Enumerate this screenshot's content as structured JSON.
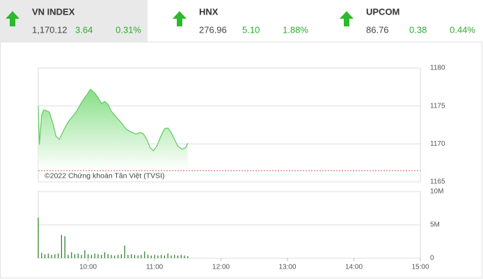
{
  "tabs": [
    {
      "name": "VN INDEX",
      "value": "1,170.12",
      "change": "3.64",
      "percent": "0.31%"
    },
    {
      "name": "HNX",
      "value": "276.96",
      "change": "5.10",
      "percent": "1.88%"
    },
    {
      "name": "UPCOM",
      "value": "86.76",
      "change": "0.38",
      "percent": "0.44%"
    }
  ],
  "chart_data": [
    {
      "type": "area",
      "annotation": "©2022 Chứng khoán Tân Việt (TVSI)",
      "color": "#5cc95c",
      "x": [
        555,
        556,
        558,
        560,
        565,
        568,
        571,
        574,
        577,
        580,
        583,
        587,
        590,
        593,
        596,
        599,
        602,
        606,
        609,
        612,
        615,
        618,
        621,
        625,
        628,
        631,
        634,
        637,
        640,
        643,
        647,
        650,
        653,
        656,
        659,
        662,
        666,
        669,
        672,
        675,
        678,
        681,
        685,
        688,
        690
      ],
      "values": [
        1175.0,
        1169.9,
        1173.8,
        1174.5,
        1174.2,
        1172.8,
        1171.0,
        1170.6,
        1171.5,
        1172.4,
        1173.1,
        1173.8,
        1174.4,
        1175.2,
        1175.9,
        1176.5,
        1177.2,
        1176.7,
        1176.1,
        1175.3,
        1175.6,
        1175.2,
        1174.3,
        1173.6,
        1173.1,
        1172.6,
        1172.0,
        1171.7,
        1171.5,
        1171.3,
        1171.5,
        1171.3,
        1170.6,
        1169.5,
        1169.1,
        1169.7,
        1171.1,
        1172.0,
        1172.1,
        1171.5,
        1170.6,
        1169.7,
        1169.3,
        1169.5,
        1170.1
      ],
      "xlim": [
        555,
        900
      ],
      "ylim": [
        1165,
        1180
      ],
      "yticks": [
        1165,
        1170,
        1175,
        1180
      ],
      "reference_line": 1166.48
    },
    {
      "type": "bar",
      "color": "#1f7a1f",
      "x": [
        555,
        558,
        561,
        564,
        567,
        570,
        573,
        576,
        579,
        582,
        585,
        588,
        591,
        594,
        597,
        600,
        603,
        606,
        609,
        612,
        615,
        618,
        621,
        624,
        627,
        630,
        633,
        636,
        639,
        642,
        645,
        648,
        651,
        654,
        657,
        660,
        663,
        666,
        669,
        672,
        675,
        678,
        681,
        684,
        687,
        690
      ],
      "values": [
        6100000,
        800000,
        600000,
        700000,
        500000,
        600000,
        700000,
        3500000,
        3300000,
        500000,
        900000,
        600000,
        700000,
        500000,
        1200000,
        600000,
        500000,
        700000,
        600000,
        500000,
        900000,
        600000,
        500000,
        400000,
        500000,
        600000,
        1900000,
        500000,
        600000,
        500000,
        400000,
        500000,
        1000000,
        500000,
        400000,
        500000,
        400000,
        500000,
        400000,
        700000,
        400000,
        500000,
        400000,
        500000,
        400000,
        300000
      ],
      "xlim": [
        555,
        900
      ],
      "ylim": [
        0,
        10000000
      ],
      "yticks": [
        0,
        {
          "value": 5000000,
          "label": "5M"
        },
        {
          "value": 10000000,
          "label": "10M"
        }
      ],
      "xticks": [
        {
          "value": 600,
          "label": "10:00"
        },
        {
          "value": 660,
          "label": "11:00"
        },
        {
          "value": 720,
          "label": "12:00"
        },
        {
          "value": 780,
          "label": "13:00"
        },
        {
          "value": 840,
          "label": "14:00"
        },
        {
          "value": 900,
          "label": "15:00"
        }
      ]
    }
  ]
}
